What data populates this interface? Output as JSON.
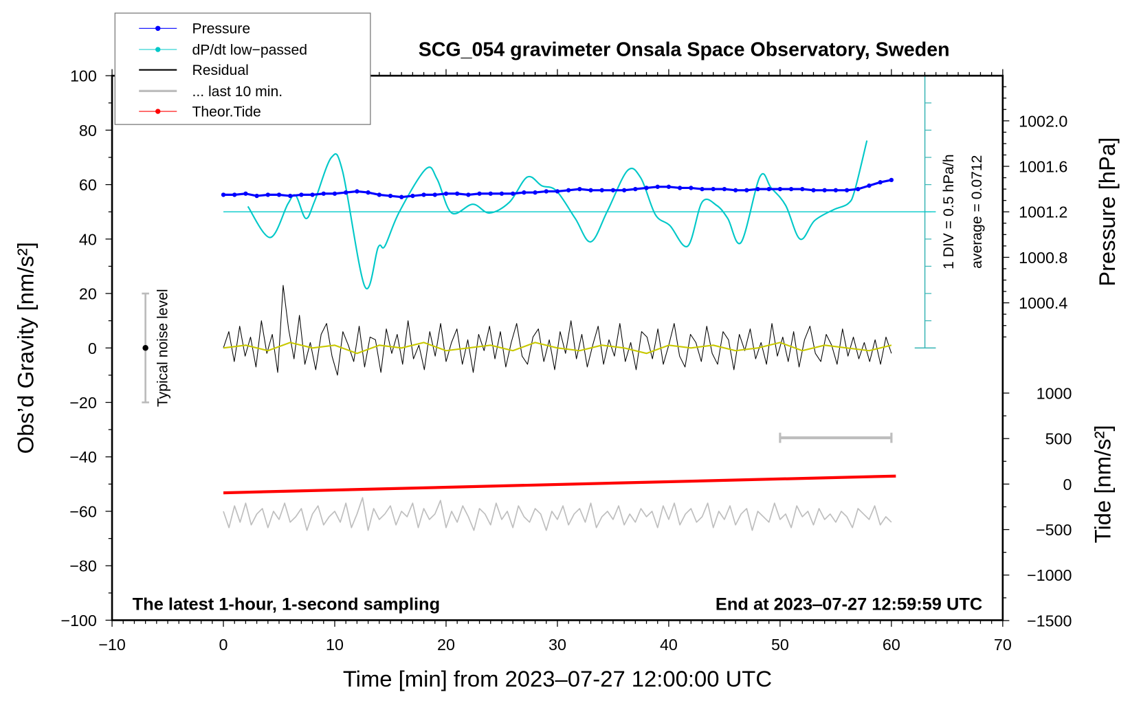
{
  "chart_data": {
    "type": "line",
    "title": "SCG_054 gravimeter Onsala Space Observatory, Sweden",
    "xlabel": "Time [min] from 2023‒07‑27 12:00:00 UTC",
    "ylabel_left": "Obs’d Gravity [nm/s²]",
    "ylabel_right_top": "Pressure [hPa]",
    "ylabel_right_bottom": "Tide [nm/s²]",
    "xlim": [
      -10,
      70
    ],
    "ylim_left": [
      -100,
      100
    ],
    "x_ticks": [
      "−10",
      "0",
      "10",
      "20",
      "30",
      "40",
      "50",
      "60",
      "70"
    ],
    "y_ticks_left": [
      "100",
      "80",
      "60",
      "40",
      "20",
      "0",
      "−20",
      "−40",
      "−60",
      "−80",
      "−100"
    ],
    "pressure_ticks": [
      "1002.0",
      "1001.6",
      "1001.2",
      "1000.8",
      "1000.4"
    ],
    "tide_ticks": [
      "1000",
      "500",
      "0",
      "−500",
      "−1000",
      "−1500"
    ],
    "annotations": {
      "bottom_left": "The latest 1‑hour, 1‑second sampling",
      "bottom_right": "End at 2023‒07‑27 12:59:59 UTC",
      "div_label": "1 DIV = 0.5 hPa/h",
      "average_label": "average = 0.0712",
      "noise_label": "Typical noise level"
    },
    "legend": {
      "placement": "top-left",
      "entries": [
        "Pressure",
        "dP/dt low−passed",
        "Residual",
        "... last 10 min.",
        "Theor.Tide"
      ]
    },
    "colors": {
      "pressure": "#0000ff",
      "dpdt": "#00c8c8",
      "residual": "#000000",
      "smoothed": "#c8c800",
      "last10": "#bebebe",
      "tide": "#ff0000",
      "dpdt_axis": "#40b8b8"
    },
    "noise_level": {
      "x": -7,
      "center": 0,
      "range": [
        -20,
        20
      ]
    },
    "last10_scale_bar": {
      "x": [
        50,
        60
      ],
      "y": -33
    },
    "dpdt_scale": {
      "baseline_gravity": 50,
      "average_hpa_per_h": 0.0712,
      "hpa_per_h_per_div": 0.5,
      "gravity_per_div": 10
    },
    "series": [
      {
        "name": "Pressure",
        "unit": "hPa",
        "x_start": 0,
        "x_step": 1,
        "values": [
          1001.35,
          1001.35,
          1001.36,
          1001.34,
          1001.35,
          1001.35,
          1001.34,
          1001.35,
          1001.35,
          1001.36,
          1001.36,
          1001.37,
          1001.38,
          1001.37,
          1001.35,
          1001.34,
          1001.33,
          1001.34,
          1001.35,
          1001.35,
          1001.36,
          1001.36,
          1001.35,
          1001.36,
          1001.36,
          1001.36,
          1001.36,
          1001.37,
          1001.37,
          1001.38,
          1001.38,
          1001.39,
          1001.4,
          1001.39,
          1001.39,
          1001.39,
          1001.39,
          1001.4,
          1001.41,
          1001.42,
          1001.42,
          1001.41,
          1001.41,
          1001.4,
          1001.4,
          1001.4,
          1001.39,
          1001.39,
          1001.4,
          1001.4,
          1001.4,
          1001.4,
          1001.4,
          1001.39,
          1001.39,
          1001.39,
          1001.39,
          1001.4,
          1001.43,
          1001.46,
          1001.48
        ]
      },
      {
        "name": "dP/dt low-passed",
        "unit": "hPa/h",
        "x": [
          2.2,
          4.2,
          5.8,
          6.5,
          7.4,
          8.2,
          9.7,
          10.7,
          12.7,
          13.9,
          14.5,
          15.8,
          18.2,
          19.2,
          20.5,
          22.4,
          23.9,
          25.7,
          27.3,
          28.6,
          29.9,
          31.6,
          33.0,
          34.5,
          36.3,
          37.5,
          38.8,
          40.1,
          41.7,
          43.0,
          44.3,
          45.3,
          46.5,
          48.2,
          49.2,
          50.5,
          51.8,
          53.1,
          54.8,
          56.1,
          56.7,
          57.8
        ],
        "values": [
          0.17,
          -0.4,
          0.22,
          0.37,
          -0.05,
          0.27,
          1.07,
          0.82,
          -1.3,
          -0.58,
          -0.56,
          0.07,
          0.86,
          0.67,
          0.05,
          0.21,
          0.05,
          0.25,
          0.71,
          0.55,
          0.46,
          -0.05,
          -0.48,
          0.09,
          0.83,
          0.69,
          0.02,
          -0.18,
          -0.56,
          0.25,
          0.19,
          -0.05,
          -0.49,
          0.72,
          0.51,
          0.19,
          -0.43,
          -0.09,
          0.11,
          0.22,
          0.46,
          1.38
        ]
      },
      {
        "name": "Residual",
        "unit": "nm/s²",
        "x_range": [
          0,
          60
        ],
        "values": [
          0,
          6,
          -5,
          8,
          -3,
          4,
          -7,
          10,
          -2,
          5,
          -9,
          23,
          7,
          -4,
          12,
          -6,
          2,
          -8,
          5,
          9,
          -3,
          -10,
          6,
          1,
          -5,
          8,
          -7,
          4,
          3,
          -9,
          7,
          -2,
          5,
          -6,
          10,
          -4,
          1,
          -8,
          6,
          -3,
          9,
          -5,
          2,
          7,
          -6,
          3,
          -9,
          5,
          -1,
          8,
          -4,
          6,
          -7,
          2,
          9,
          -3,
          -6,
          4,
          7,
          -5,
          3,
          -8,
          6,
          -2,
          10,
          -4,
          5,
          -7,
          1,
          8,
          -6,
          3,
          -3,
          9,
          -5,
          2,
          -8,
          6,
          4,
          -4,
          7,
          -6,
          1,
          9,
          -3,
          -7,
          5,
          2,
          -5,
          8,
          -2,
          -6,
          6,
          3,
          -8,
          5,
          -1,
          7,
          -4,
          2,
          -6,
          9,
          -3,
          4,
          -5,
          6,
          -7,
          3,
          8,
          -2,
          -5,
          5,
          1,
          -6,
          7,
          -3,
          4,
          -4,
          2,
          -5,
          3,
          -6,
          4,
          -2
        ]
      },
      {
        "name": "Residual smoothed",
        "unit": "nm/s²",
        "x_range": [
          0,
          60
        ],
        "values": [
          0,
          1,
          -1,
          2,
          0,
          1,
          -2,
          1,
          0,
          2,
          -1,
          0,
          1,
          -1,
          2,
          0,
          -1,
          1,
          0,
          -2,
          1,
          0,
          1,
          -1,
          0,
          2,
          -1,
          1,
          0,
          -1,
          1
        ]
      },
      {
        "name": "... last 10 min.",
        "unit": "nm/s²",
        "x_range": [
          0,
          60
        ],
        "values": [
          -60,
          -66,
          -58,
          -64,
          -57,
          -65,
          -61,
          -59,
          -66,
          -60,
          -63,
          -57,
          -64,
          -62,
          -59,
          -67,
          -61,
          -58,
          -65,
          -62,
          -60,
          -64,
          -57,
          -66,
          -61,
          -55,
          -67,
          -59,
          -63,
          -61,
          -58,
          -65,
          -60,
          -62,
          -57,
          -66,
          -59,
          -63,
          -61,
          -56,
          -66,
          -60,
          -64,
          -58,
          -62,
          -67,
          -59,
          -61,
          -65,
          -57,
          -63,
          -60,
          -66,
          -58,
          -62,
          -64,
          -59,
          -61,
          -67,
          -60,
          -63,
          -58,
          -65,
          -61,
          -59,
          -64,
          -57,
          -66,
          -62,
          -60,
          -63,
          -58,
          -65,
          -61,
          -64,
          -59,
          -62,
          -60,
          -66,
          -58,
          -63,
          -57,
          -65,
          -61,
          -59,
          -64,
          -62,
          -57,
          -66,
          -60,
          -63,
          -58,
          -65,
          -61,
          -59,
          -67,
          -60,
          -62,
          -64,
          -57,
          -63,
          -61,
          -66,
          -58,
          -62,
          -60,
          -65,
          -59,
          -63,
          -61,
          -64,
          -60,
          -62,
          -66,
          -59,
          -61,
          -63,
          -58,
          -65,
          -62,
          -64
        ]
      },
      {
        "name": "Theor.Tide",
        "unit": "nm/s²",
        "x": [
          0,
          60.4
        ],
        "values": [
          -96,
          88
        ]
      }
    ]
  }
}
